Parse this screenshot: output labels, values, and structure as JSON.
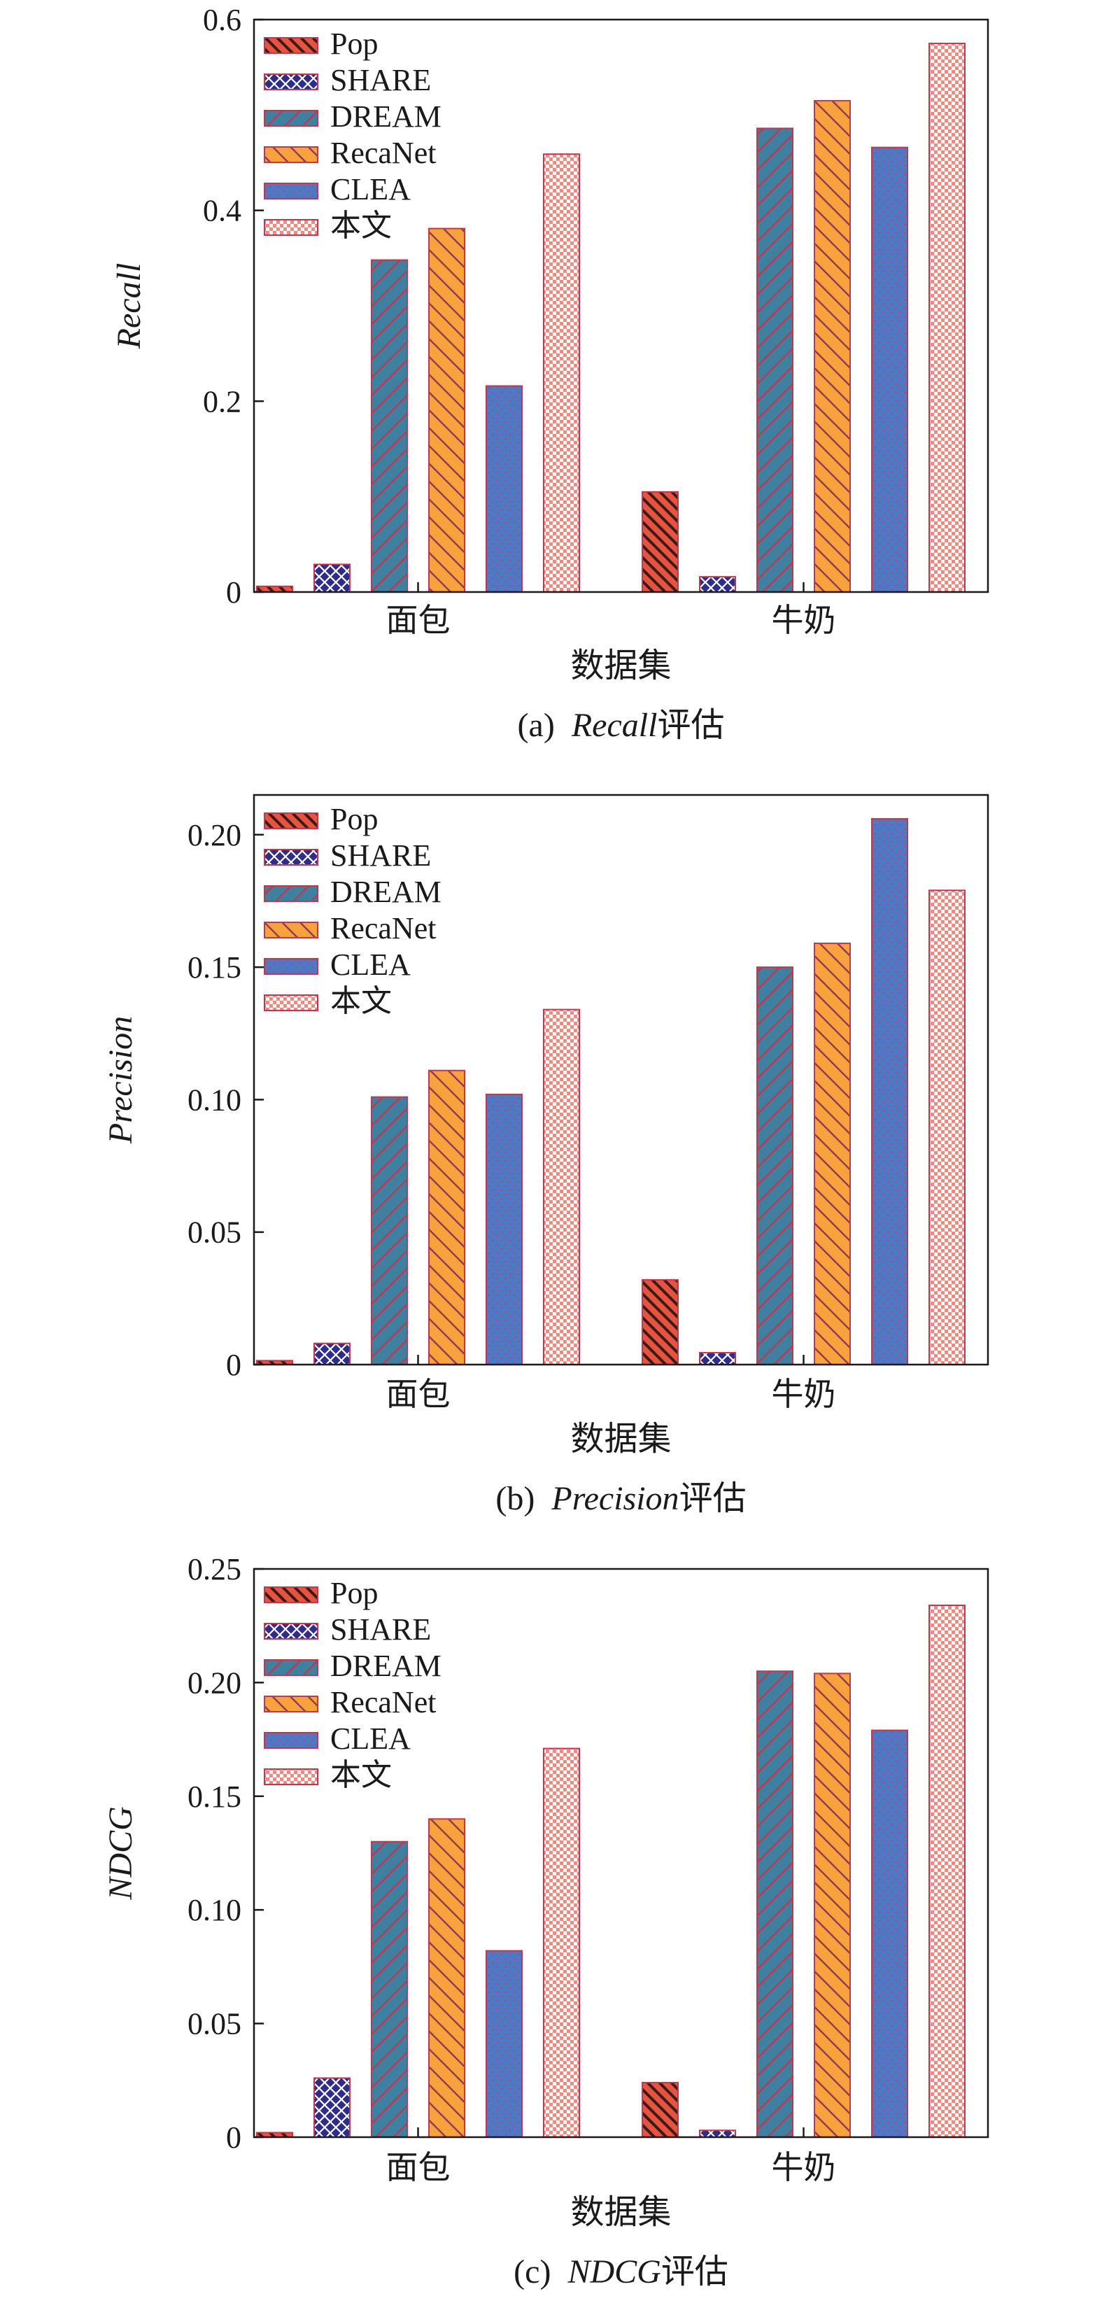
{
  "colors": {
    "pop_bg": "#e8533f",
    "pop_line": "#3a1c17",
    "share_bg": "#ffffff",
    "share_fg": "#2e2d8c",
    "dream_bg": "#3f7fa0",
    "dream_line": "#c0384f",
    "recanet_bg": "#f7a23c",
    "recanet_line": "#8e3a52",
    "clea_bg": "#4f78c4",
    "clea_dot": "#c04060",
    "ours_bg": "#ffffff",
    "ours_check": "#ee8a80",
    "bar_stroke": "#c0384f"
  },
  "chart_data": [
    {
      "type": "bar",
      "title": "",
      "caption_prefix": "(a)",
      "caption_metric": "Recall",
      "caption_suffix": "评估",
      "xlabel": "数据集",
      "ylabel": "Recall",
      "categories": [
        "面包",
        "牛奶"
      ],
      "ylim": [
        0,
        0.6
      ],
      "yticks": [
        0,
        0.2,
        0.4,
        0.6
      ],
      "ytick_labels": [
        "0",
        "0.2",
        "0.4",
        "0.6"
      ],
      "legend_position": "top-left",
      "series": [
        {
          "name": "Pop",
          "values": [
            0.006,
            0.105
          ]
        },
        {
          "name": "SHARE",
          "values": [
            0.029,
            0.016
          ]
        },
        {
          "name": "DREAM",
          "values": [
            0.348,
            0.486
          ]
        },
        {
          "name": "RecaNet",
          "values": [
            0.381,
            0.515
          ]
        },
        {
          "name": "CLEA",
          "values": [
            0.216,
            0.466
          ]
        },
        {
          "name": "本文",
          "values": [
            0.459,
            0.575
          ]
        }
      ]
    },
    {
      "type": "bar",
      "title": "",
      "caption_prefix": "(b)",
      "caption_metric": "Precision",
      "caption_suffix": "评估",
      "xlabel": "数据集",
      "ylabel": "Precision",
      "categories": [
        "面包",
        "牛奶"
      ],
      "ylim": [
        0,
        0.215
      ],
      "yticks": [
        0,
        0.05,
        0.1,
        0.15,
        0.2
      ],
      "ytick_labels": [
        "0",
        "0.05",
        "0.10",
        "0.15",
        "0.20"
      ],
      "legend_position": "top-left",
      "series": [
        {
          "name": "Pop",
          "values": [
            0.0015,
            0.032
          ]
        },
        {
          "name": "SHARE",
          "values": [
            0.008,
            0.0045
          ]
        },
        {
          "name": "DREAM",
          "values": [
            0.101,
            0.15
          ]
        },
        {
          "name": "RecaNet",
          "values": [
            0.111,
            0.159
          ]
        },
        {
          "name": "CLEA",
          "values": [
            0.102,
            0.206
          ]
        },
        {
          "name": "本文",
          "values": [
            0.134,
            0.179
          ]
        }
      ]
    },
    {
      "type": "bar",
      "title": "",
      "caption_prefix": "(c)",
      "caption_metric": "NDCG",
      "caption_suffix": "评估",
      "xlabel": "数据集",
      "ylabel": "NDCG",
      "categories": [
        "面包",
        "牛奶"
      ],
      "ylim": [
        0,
        0.25
      ],
      "yticks": [
        0,
        0.05,
        0.1,
        0.15,
        0.2,
        0.25
      ],
      "ytick_labels": [
        "0",
        "0.05",
        "0.10",
        "0.15",
        "0.20",
        "0.25"
      ],
      "legend_position": "top-left",
      "series": [
        {
          "name": "Pop",
          "values": [
            0.002,
            0.024
          ]
        },
        {
          "name": "SHARE",
          "values": [
            0.026,
            0.003
          ]
        },
        {
          "name": "DREAM",
          "values": [
            0.13,
            0.205
          ]
        },
        {
          "name": "RecaNet",
          "values": [
            0.14,
            0.204
          ]
        },
        {
          "name": "CLEA",
          "values": [
            0.082,
            0.179
          ]
        },
        {
          "name": "本文",
          "values": [
            0.171,
            0.234
          ]
        }
      ]
    }
  ]
}
